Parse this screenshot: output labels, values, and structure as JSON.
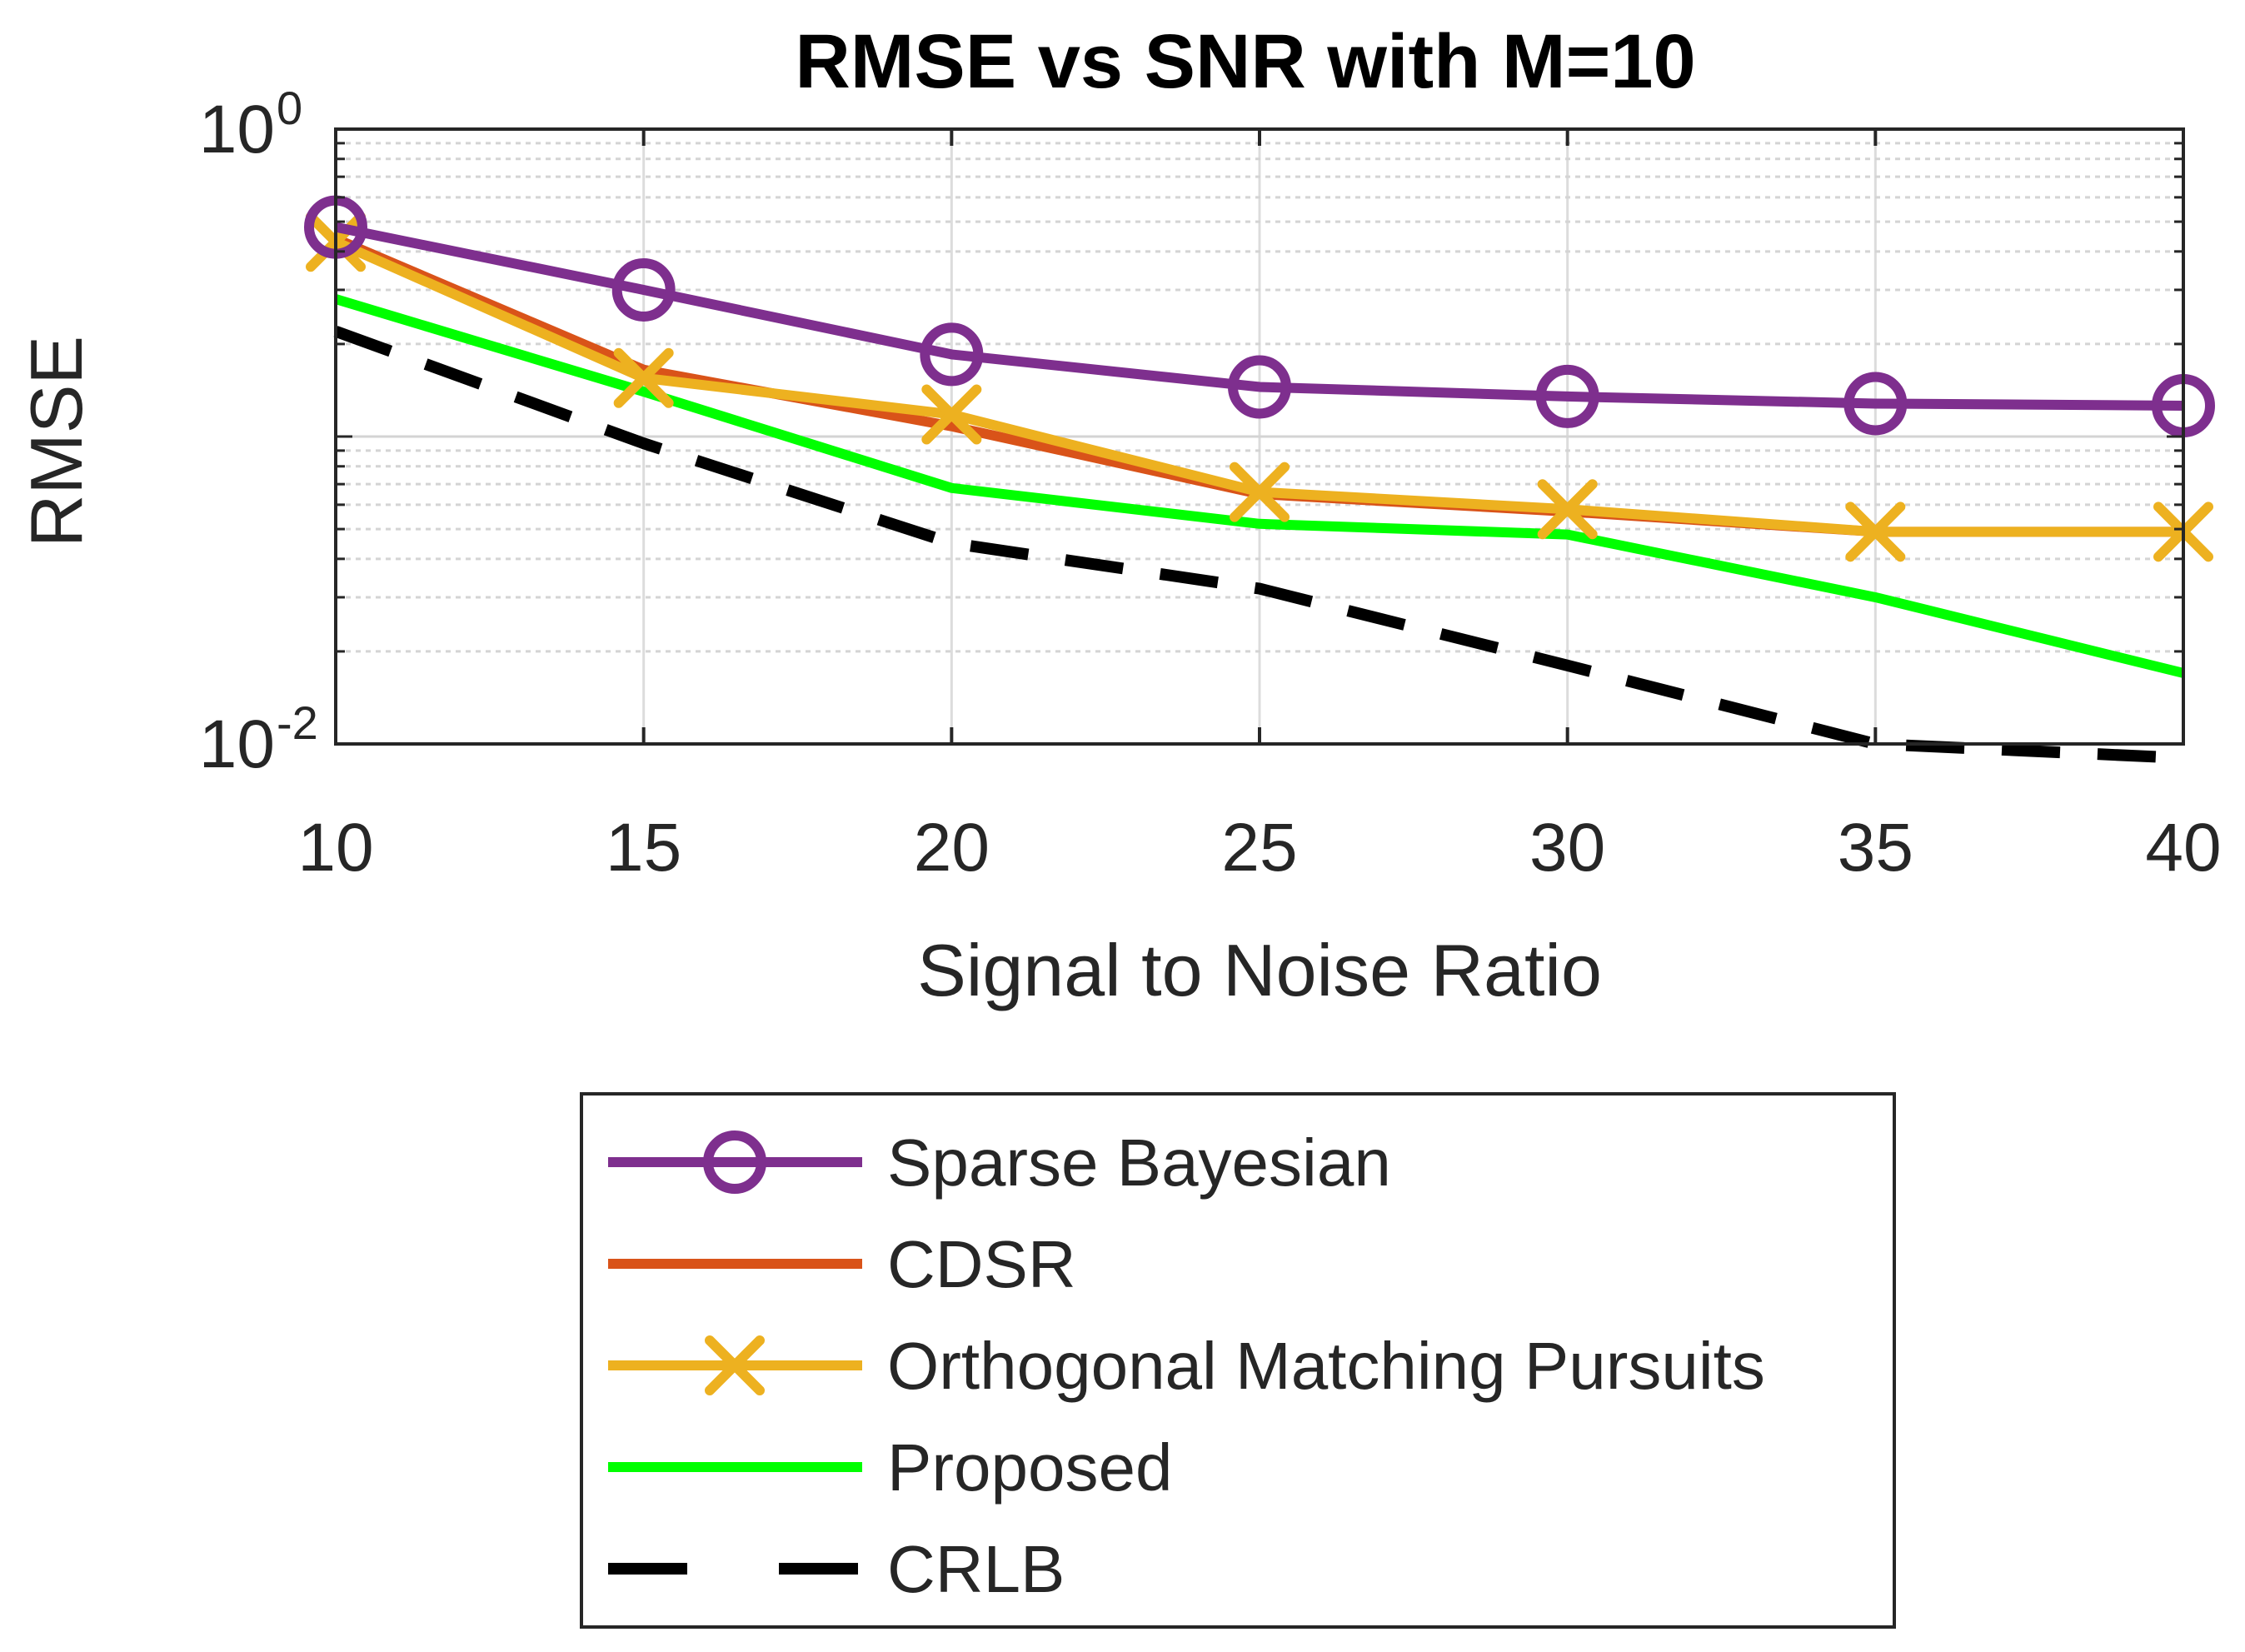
{
  "chart_data": {
    "type": "line",
    "title": "RMSE vs SNR with M=10",
    "xlabel": "Signal to Noise Ratio",
    "ylabel": "RMSE",
    "yscale": "log",
    "xlim": [
      10,
      40
    ],
    "ylim": [
      0.01,
      1
    ],
    "x": [
      10,
      15,
      20,
      25,
      30,
      35,
      40
    ],
    "xticks": [
      "10",
      "15",
      "20",
      "25",
      "30",
      "35",
      "40"
    ],
    "yticks": [
      {
        "base": "10",
        "exp": "0"
      },
      {
        "base": "10",
        "exp": "-2"
      }
    ],
    "grid": true,
    "legend_position": "below",
    "series": [
      {
        "name": "Sparse Bayesian",
        "color": "#7E2F8E",
        "marker": "circle",
        "dash": "solid",
        "values": [
          0.48,
          0.3,
          0.185,
          0.145,
          0.135,
          0.128,
          0.126
        ]
      },
      {
        "name": "CDSR",
        "color": "#D95319",
        "marker": "none",
        "dash": "solid",
        "values": [
          0.44,
          0.165,
          0.108,
          0.065,
          0.057,
          0.049,
          0.049
        ]
      },
      {
        "name": "Orthogonal Matching Pursuits",
        "color": "#EDB120",
        "marker": "x",
        "dash": "solid",
        "values": [
          0.43,
          0.155,
          0.118,
          0.066,
          0.058,
          0.049,
          0.049
        ]
      },
      {
        "name": "Proposed",
        "color": "#00FF00",
        "marker": "none",
        "dash": "solid",
        "values": [
          0.28,
          0.14,
          0.068,
          0.052,
          0.048,
          0.03,
          0.017
        ]
      },
      {
        "name": "CRLB",
        "color": "#000000",
        "marker": "none",
        "dash": "dashed",
        "values": [
          0.22,
          0.095,
          0.045,
          0.032,
          0.018,
          0.01,
          0.009
        ]
      }
    ]
  }
}
